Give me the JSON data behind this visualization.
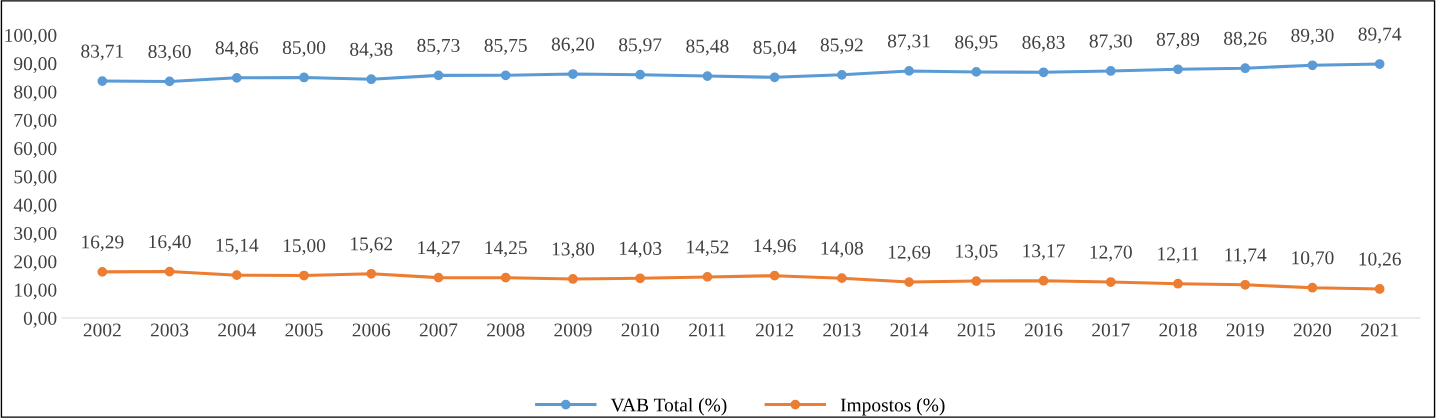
{
  "chart_data": {
    "type": "line",
    "categories": [
      "2002",
      "2003",
      "2004",
      "2005",
      "2006",
      "2007",
      "2008",
      "2009",
      "2010",
      "2011",
      "2012",
      "2013",
      "2014",
      "2015",
      "2016",
      "2017",
      "2018",
      "2019",
      "2020",
      "2021"
    ],
    "series": [
      {
        "name": "VAB Total (%)",
        "color": "#5b9bd5",
        "values": [
          83.71,
          83.6,
          84.86,
          85.0,
          84.38,
          85.73,
          85.75,
          86.2,
          85.97,
          85.48,
          85.04,
          85.92,
          87.31,
          86.95,
          86.83,
          87.3,
          87.89,
          88.26,
          89.3,
          89.74
        ],
        "value_labels": [
          "83,71",
          "83,60",
          "84,86",
          "85,00",
          "84,38",
          "85,73",
          "85,75",
          "86,20",
          "85,97",
          "85,48",
          "85,04",
          "85,92",
          "87,31",
          "86,95",
          "86,83",
          "87,30",
          "87,89",
          "88,26",
          "89,30",
          "89,74"
        ]
      },
      {
        "name": "Impostos (%)",
        "color": "#ed7d31",
        "values": [
          16.29,
          16.4,
          15.14,
          15.0,
          15.62,
          14.27,
          14.25,
          13.8,
          14.03,
          14.52,
          14.96,
          14.08,
          12.69,
          13.05,
          13.17,
          12.7,
          12.11,
          11.74,
          10.7,
          10.26
        ],
        "value_labels": [
          "16,29",
          "16,40",
          "15,14",
          "15,00",
          "15,62",
          "14,27",
          "14,25",
          "13,80",
          "14,03",
          "14,52",
          "14,96",
          "14,08",
          "12,69",
          "13,05",
          "13,17",
          "12,70",
          "12,11",
          "11,74",
          "10,70",
          "10,26"
        ]
      }
    ],
    "ylim": [
      0,
      100
    ],
    "yticks": [
      {
        "value": 0,
        "label": "0,00"
      },
      {
        "value": 10,
        "label": "10,00"
      },
      {
        "value": 20,
        "label": "20,00"
      },
      {
        "value": 30,
        "label": "30,00"
      },
      {
        "value": 40,
        "label": "40,00"
      },
      {
        "value": 50,
        "label": "50,00"
      },
      {
        "value": 60,
        "label": "60,00"
      },
      {
        "value": 70,
        "label": "70,00"
      },
      {
        "value": 80,
        "label": "80,00"
      },
      {
        "value": 90,
        "label": "90,00"
      },
      {
        "value": 100,
        "label": "100,00"
      }
    ],
    "grid": false,
    "legend": "bottom",
    "marker": "circle",
    "line_style": "solid"
  }
}
